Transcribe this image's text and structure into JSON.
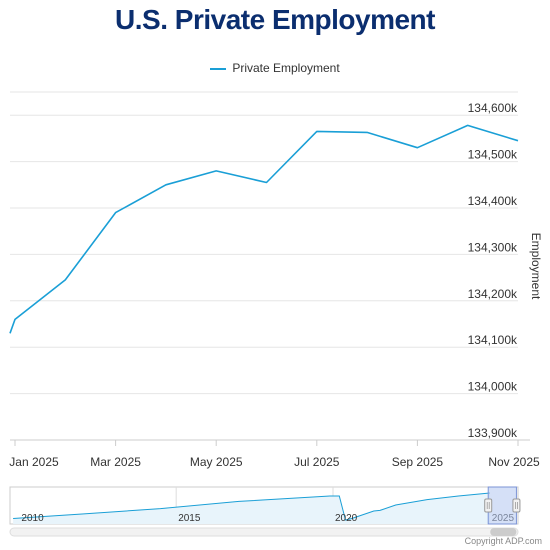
{
  "title": "U.S. Private Employment",
  "copyright": "Copyright ADP.com",
  "colors": {
    "line": "#1a9fd6",
    "title": "#0b2e6f",
    "grid": "#e6e6e6",
    "navigator_fill": "#e8f4fb",
    "navigator_window": "#b3c6f0"
  },
  "chart_data": {
    "type": "line",
    "title": "U.S. Private Employment",
    "ylabel": "Employment",
    "xlabel": "",
    "legend": "top-center",
    "grid": true,
    "ylim": [
      133900,
      134650
    ],
    "x_ticks": [
      "Jan 2025",
      "Mar 2025",
      "May 2025",
      "Jul 2025",
      "Sep 2025",
      "Nov 2025"
    ],
    "y_ticks": [
      "133,900k",
      "134,000k",
      "134,100k",
      "134,200k",
      "134,300k",
      "134,400k",
      "134,500k",
      "134,600k"
    ],
    "series": [
      {
        "name": "Private Employment",
        "x": [
          "2024-12-15",
          "2025-01",
          "2025-02",
          "2025-03",
          "2025-04",
          "2025-05",
          "2025-06",
          "2025-07",
          "2025-08",
          "2025-09",
          "2025-10",
          "2025-11"
        ],
        "values": [
          134130,
          134160,
          134245,
          134390,
          134450,
          134480,
          134455,
          134565,
          134563,
          134530,
          134578,
          134545
        ]
      }
    ],
    "navigator": {
      "x_labels": [
        "2010",
        "2015",
        "2020",
        "2025"
      ],
      "series": [
        {
          "x": [
            2009.8,
            2012,
            2014.5,
            2017,
            2019.9,
            2020.2,
            2020.4,
            2020.6,
            2021.3,
            2021.5,
            2022,
            2023,
            2024,
            2025
          ],
          "y": [
            0.05,
            0.2,
            0.38,
            0.62,
            0.8,
            0.8,
            0.0,
            0.05,
            0.3,
            0.32,
            0.5,
            0.68,
            0.8,
            0.9
          ]
        }
      ],
      "selected_range": [
        "2025-01",
        "2025-11"
      ]
    }
  }
}
